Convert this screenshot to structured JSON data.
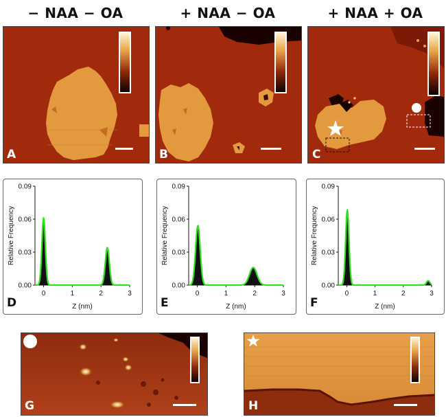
{
  "panels_top": [
    {
      "letter": "A",
      "title": "− NAA  − OA"
    },
    {
      "letter": "B",
      "title": "+ NAA  − OA"
    },
    {
      "letter": "C",
      "title": "+ NAA  + OA"
    }
  ],
  "bottom": [
    {
      "letter": "G"
    },
    {
      "letter": "H"
    }
  ],
  "colors": {
    "substrate": "#a12a0c",
    "island": "#e39a3f",
    "hole": "#1a0200"
  },
  "chart_data": [
    {
      "type": "line",
      "panel": "D",
      "xlabel": "Z (nm)",
      "ylabel": "Relative Frequency",
      "xlim": [
        -0.3,
        3
      ],
      "ylim": [
        0,
        0.09
      ],
      "xticks": [
        "0",
        "1",
        "2",
        "3"
      ],
      "yticks": [
        "0.00",
        "0.03",
        "0.06",
        "0.09"
      ],
      "peaks": [
        {
          "center": 0.0,
          "height": 0.061,
          "sigma": 0.06
        },
        {
          "center": 2.22,
          "height": 0.034,
          "sigma": 0.07
        }
      ]
    },
    {
      "type": "line",
      "panel": "E",
      "xlabel": "Z (nm)",
      "ylabel": "Relative Frequency",
      "xlim": [
        -0.3,
        3
      ],
      "ylim": [
        0,
        0.09
      ],
      "xticks": [
        "0",
        "1",
        "2",
        "3"
      ],
      "yticks": [
        "0.00",
        "0.03",
        "0.06",
        "0.09"
      ],
      "peaks": [
        {
          "center": 0.02,
          "height": 0.054,
          "sigma": 0.08
        },
        {
          "center": 1.95,
          "height": 0.016,
          "sigma": 0.13
        }
      ]
    },
    {
      "type": "line",
      "panel": "F",
      "xlabel": "Z (nm)",
      "ylabel": "Relative Frequency",
      "xlim": [
        -0.3,
        3
      ],
      "ylim": [
        0,
        0.09
      ],
      "xticks": [
        "0",
        "1",
        "2",
        "3"
      ],
      "yticks": [
        "0.00",
        "0.03",
        "0.06",
        "0.09"
      ],
      "peaks": [
        {
          "center": 0.02,
          "height": 0.068,
          "sigma": 0.06
        },
        {
          "center": 2.88,
          "height": 0.004,
          "sigma": 0.06
        }
      ]
    }
  ]
}
